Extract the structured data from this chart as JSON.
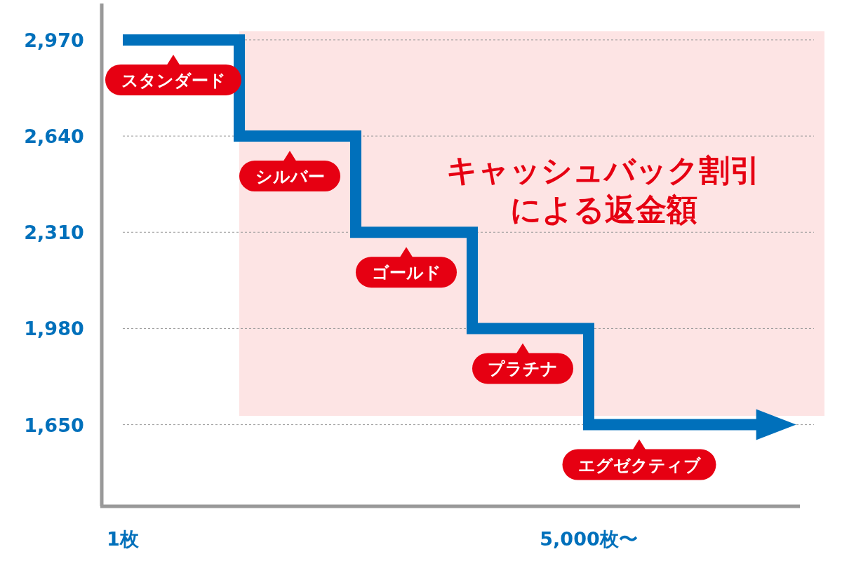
{
  "chart_data": {
    "type": "step",
    "categories": [
      "1枚",
      null,
      null,
      null,
      "5,000枚〜"
    ],
    "series": [
      {
        "color": "#0070bb",
        "values": [
          2970,
          2640,
          2310,
          1980,
          1650
        ]
      }
    ],
    "ylim": [
      1370,
      3090
    ],
    "yticks": [
      {
        "value": 1650,
        "label": "1,650"
      },
      {
        "value": 1980,
        "label": "1,980"
      },
      {
        "value": 2310,
        "label": "2,310"
      },
      {
        "value": 2640,
        "label": "2,640"
      },
      {
        "value": 2970,
        "label": "2,970"
      }
    ],
    "grid": "y",
    "bands": [
      {
        "axis": "y",
        "from": 1680,
        "to": 3000,
        "label": "キャッシュバック割引による返金額",
        "color": "#fde4e4"
      }
    ],
    "annotations": [
      {
        "text": "スタンダード",
        "x": "1枚",
        "y": 2970
      },
      {
        "text": "シルバー",
        "y": 2640
      },
      {
        "text": "ゴールド",
        "y": 2310
      },
      {
        "text": "プラチナ",
        "y": 1980
      },
      {
        "text": "エグゼクティブ",
        "x": "5,000枚〜",
        "y": 1650
      }
    ]
  }
}
